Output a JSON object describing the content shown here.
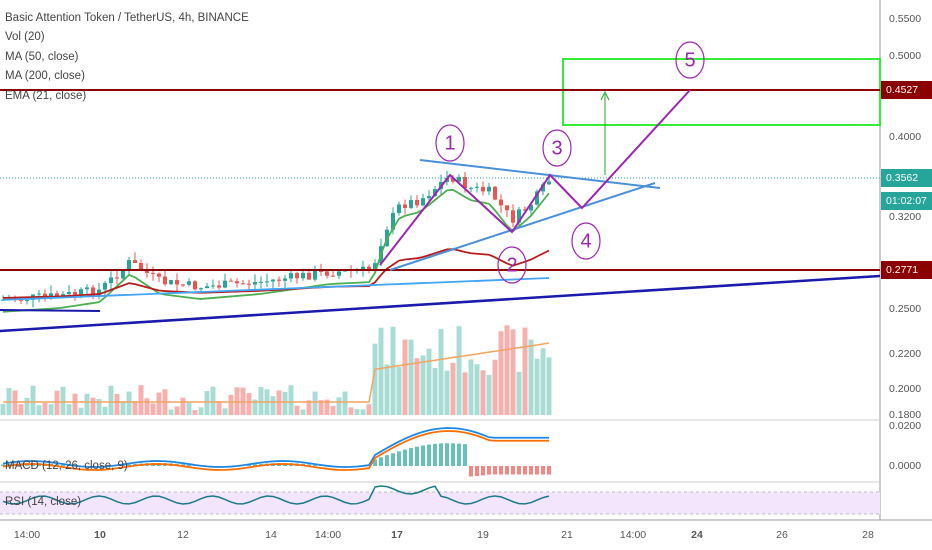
{
  "legend": {
    "symbol": "Basic Attention Token / TetherUS, 4h, BINANCE",
    "indicators": [
      "Vol (20)",
      "MA (50, close)",
      "MA (200, close)",
      "EMA (21, close)"
    ],
    "macd": "MACD (12, 26, close, 9)",
    "rsi": "RSI (14, close)"
  },
  "price_axis": [
    "0.5500",
    "0.5000",
    "0.4000",
    "0.3200",
    "0.2500",
    "0.2200",
    "0.2000",
    "0.1800"
  ],
  "price_tags": {
    "resistance": "0.4527",
    "last": "0.3562",
    "countdown": "01:02:07",
    "support": "0.2771"
  },
  "macd_axis": [
    "0.0200",
    "0.0000"
  ],
  "time_axis": [
    "14:00",
    "10",
    "12",
    "14",
    "14:00",
    "17",
    "19",
    "21",
    "14:00",
    "24",
    "26",
    "28"
  ],
  "waves": [
    "1",
    "2",
    "3",
    "4",
    "5"
  ]
}
